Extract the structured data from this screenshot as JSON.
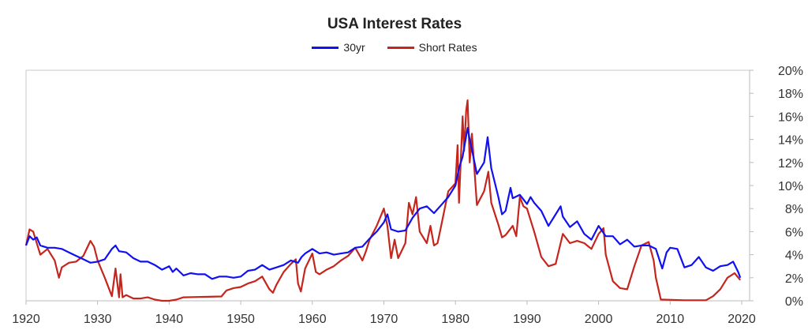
{
  "chart_data": {
    "type": "line",
    "title": "USA Interest Rates",
    "xlabel": "",
    "ylabel": "",
    "xlim": [
      1920,
      2020
    ],
    "ylim": [
      0,
      20
    ],
    "x_ticks": [
      "1920",
      "1930",
      "1940",
      "1950",
      "1960",
      "1970",
      "1980",
      "1990",
      "2000",
      "2010",
      "2020"
    ],
    "y_ticks": [
      "0%",
      "2%",
      "4%",
      "6%",
      "8%",
      "10%",
      "12%",
      "14%",
      "16%",
      "18%",
      "20%"
    ],
    "y_axis_side": "right",
    "grid": false,
    "legend_position": "top",
    "series": [
      {
        "name": "30yr",
        "color": "#1010f0",
        "points": [
          [
            1920,
            4.8
          ],
          [
            1920.5,
            5.6
          ],
          [
            1921,
            5.3
          ],
          [
            1921.5,
            5.5
          ],
          [
            1922,
            4.8
          ],
          [
            1923,
            4.6
          ],
          [
            1924,
            4.6
          ],
          [
            1925,
            4.5
          ],
          [
            1926,
            4.2
          ],
          [
            1927,
            3.9
          ],
          [
            1928,
            3.6
          ],
          [
            1929,
            3.3
          ],
          [
            1930,
            3.4
          ],
          [
            1931,
            3.6
          ],
          [
            1932,
            4.5
          ],
          [
            1932.5,
            4.8
          ],
          [
            1933,
            4.3
          ],
          [
            1934,
            4.2
          ],
          [
            1935,
            3.7
          ],
          [
            1936,
            3.4
          ],
          [
            1937,
            3.4
          ],
          [
            1938,
            3.1
          ],
          [
            1939,
            2.7
          ],
          [
            1940,
            3.0
          ],
          [
            1940.5,
            2.5
          ],
          [
            1941,
            2.8
          ],
          [
            1942,
            2.2
          ],
          [
            1943,
            2.4
          ],
          [
            1944,
            2.3
          ],
          [
            1945,
            2.3
          ],
          [
            1946,
            1.9
          ],
          [
            1947,
            2.1
          ],
          [
            1948,
            2.1
          ],
          [
            1949,
            2.0
          ],
          [
            1950,
            2.1
          ],
          [
            1951,
            2.6
          ],
          [
            1952,
            2.7
          ],
          [
            1953,
            3.1
          ],
          [
            1954,
            2.7
          ],
          [
            1955,
            2.9
          ],
          [
            1956,
            3.1
          ],
          [
            1957,
            3.5
          ],
          [
            1958,
            3.3
          ],
          [
            1958.5,
            3.8
          ],
          [
            1959,
            4.1
          ],
          [
            1960,
            4.5
          ],
          [
            1961,
            4.1
          ],
          [
            1962,
            4.2
          ],
          [
            1963,
            4.0
          ],
          [
            1964,
            4.1
          ],
          [
            1965,
            4.2
          ],
          [
            1966,
            4.6
          ],
          [
            1967,
            4.7
          ],
          [
            1968,
            5.4
          ],
          [
            1969,
            6.0
          ],
          [
            1970,
            6.8
          ],
          [
            1970.5,
            7.5
          ],
          [
            1971,
            6.2
          ],
          [
            1972,
            6.0
          ],
          [
            1973,
            6.1
          ],
          [
            1974,
            7.2
          ],
          [
            1975,
            8.0
          ],
          [
            1976,
            8.2
          ],
          [
            1977,
            7.6
          ],
          [
            1978,
            8.3
          ],
          [
            1979,
            9.0
          ],
          [
            1980,
            10.0
          ],
          [
            1980.5,
            11.5
          ],
          [
            1981,
            12.5
          ],
          [
            1981.7,
            15.0
          ],
          [
            1982,
            14.0
          ],
          [
            1982.5,
            12.5
          ],
          [
            1983,
            11.0
          ],
          [
            1984,
            12.0
          ],
          [
            1984.5,
            14.2
          ],
          [
            1985,
            11.5
          ],
          [
            1986,
            9.0
          ],
          [
            1986.5,
            7.5
          ],
          [
            1987,
            7.8
          ],
          [
            1987.7,
            9.8
          ],
          [
            1988,
            8.9
          ],
          [
            1989,
            9.2
          ],
          [
            1990,
            8.4
          ],
          [
            1990.5,
            9.0
          ],
          [
            1991,
            8.5
          ],
          [
            1992,
            7.8
          ],
          [
            1993,
            6.5
          ],
          [
            1994,
            7.5
          ],
          [
            1994.7,
            8.2
          ],
          [
            1995,
            7.3
          ],
          [
            1996,
            6.4
          ],
          [
            1997,
            6.9
          ],
          [
            1998,
            5.8
          ],
          [
            1999,
            5.3
          ],
          [
            2000,
            6.5
          ],
          [
            2001,
            5.6
          ],
          [
            2002,
            5.6
          ],
          [
            2003,
            4.9
          ],
          [
            2004,
            5.3
          ],
          [
            2005,
            4.7
          ],
          [
            2006,
            4.8
          ],
          [
            2007,
            4.8
          ],
          [
            2008,
            4.5
          ],
          [
            2008.9,
            2.8
          ],
          [
            2009.5,
            4.2
          ],
          [
            2010,
            4.6
          ],
          [
            2011,
            4.5
          ],
          [
            2012,
            2.9
          ],
          [
            2013,
            3.1
          ],
          [
            2014,
            3.8
          ],
          [
            2015,
            2.9
          ],
          [
            2016,
            2.6
          ],
          [
            2017,
            3.0
          ],
          [
            2018,
            3.1
          ],
          [
            2018.8,
            3.4
          ],
          [
            2019.5,
            2.5
          ],
          [
            2019.8,
            2.0
          ]
        ]
      },
      {
        "name": "Short Rates",
        "color": "#c4261d",
        "points": [
          [
            1920,
            4.8
          ],
          [
            1920.5,
            6.2
          ],
          [
            1921,
            6.0
          ],
          [
            1921.5,
            5.0
          ],
          [
            1922,
            4.0
          ],
          [
            1923,
            4.5
          ],
          [
            1924,
            3.5
          ],
          [
            1924.6,
            2.0
          ],
          [
            1925,
            2.9
          ],
          [
            1926,
            3.3
          ],
          [
            1927,
            3.4
          ],
          [
            1928,
            3.9
          ],
          [
            1929,
            5.2
          ],
          [
            1929.5,
            4.7
          ],
          [
            1930,
            3.5
          ],
          [
            1931,
            2.0
          ],
          [
            1932,
            0.4
          ],
          [
            1932.5,
            2.8
          ],
          [
            1933,
            0.3
          ],
          [
            1933.2,
            2.3
          ],
          [
            1933.5,
            0.3
          ],
          [
            1934,
            0.5
          ],
          [
            1935,
            0.2
          ],
          [
            1936,
            0.2
          ],
          [
            1937,
            0.3
          ],
          [
            1938,
            0.1
          ],
          [
            1939,
            0.0
          ],
          [
            1940,
            0.0
          ],
          [
            1941,
            0.1
          ],
          [
            1942,
            0.3
          ],
          [
            1947.3,
            0.375
          ],
          [
            1948,
            0.9
          ],
          [
            1949,
            1.1
          ],
          [
            1950,
            1.2
          ],
          [
            1951,
            1.5
          ],
          [
            1952,
            1.7
          ],
          [
            1953,
            2.1
          ],
          [
            1954,
            1.0
          ],
          [
            1954.5,
            0.7
          ],
          [
            1955,
            1.4
          ],
          [
            1956,
            2.5
          ],
          [
            1957,
            3.2
          ],
          [
            1957.7,
            3.6
          ],
          [
            1958,
            1.5
          ],
          [
            1958.4,
            0.8
          ],
          [
            1959,
            2.8
          ],
          [
            1960,
            4.1
          ],
          [
            1960.5,
            2.5
          ],
          [
            1961,
            2.3
          ],
          [
            1962,
            2.7
          ],
          [
            1963,
            3.0
          ],
          [
            1964,
            3.5
          ],
          [
            1965,
            3.9
          ],
          [
            1966,
            4.6
          ],
          [
            1967,
            3.5
          ],
          [
            1967.5,
            4.3
          ],
          [
            1968,
            5.3
          ],
          [
            1969,
            6.5
          ],
          [
            1970,
            8.0
          ],
          [
            1970.5,
            6.5
          ],
          [
            1971,
            3.7
          ],
          [
            1971.5,
            5.3
          ],
          [
            1972,
            3.7
          ],
          [
            1973,
            5.0
          ],
          [
            1973.5,
            8.5
          ],
          [
            1974,
            7.5
          ],
          [
            1974.5,
            9.0
          ],
          [
            1975,
            6.0
          ],
          [
            1976,
            5.0
          ],
          [
            1976.5,
            6.5
          ],
          [
            1977,
            4.8
          ],
          [
            1977.5,
            5.0
          ],
          [
            1978,
            6.5
          ],
          [
            1979,
            9.5
          ],
          [
            1980,
            10.2
          ],
          [
            1980.3,
            13.5
          ],
          [
            1980.5,
            8.5
          ],
          [
            1981,
            16.0
          ],
          [
            1981.2,
            13.0
          ],
          [
            1981.5,
            16.5
          ],
          [
            1981.7,
            17.4
          ],
          [
            1982,
            12.0
          ],
          [
            1982.3,
            14.5
          ],
          [
            1983,
            8.3
          ],
          [
            1984,
            9.5
          ],
          [
            1984.6,
            11.2
          ],
          [
            1985,
            8.5
          ],
          [
            1986,
            6.6
          ],
          [
            1986.5,
            5.5
          ],
          [
            1987,
            5.7
          ],
          [
            1988,
            6.5
          ],
          [
            1988.5,
            5.6
          ],
          [
            1989,
            9.0
          ],
          [
            1989.5,
            8.2
          ],
          [
            1990,
            8.0
          ],
          [
            1991,
            6.0
          ],
          [
            1992,
            3.8
          ],
          [
            1993,
            3.0
          ],
          [
            1994,
            3.2
          ],
          [
            1995,
            5.8
          ],
          [
            1996,
            5.0
          ],
          [
            1997,
            5.2
          ],
          [
            1998,
            5.0
          ],
          [
            1999,
            4.5
          ],
          [
            2000,
            5.8
          ],
          [
            2000.7,
            6.3
          ],
          [
            2001,
            4.0
          ],
          [
            2002,
            1.7
          ],
          [
            2003,
            1.1
          ],
          [
            2004,
            1.0
          ],
          [
            2005,
            3.0
          ],
          [
            2006,
            4.8
          ],
          [
            2007,
            5.1
          ],
          [
            2007.7,
            3.5
          ],
          [
            2008,
            2.0
          ],
          [
            2008.7,
            0.1
          ],
          [
            2009,
            0.1
          ],
          [
            2012,
            0.05
          ],
          [
            2015,
            0.05
          ],
          [
            2016,
            0.4
          ],
          [
            2017,
            1.0
          ],
          [
            2018,
            2.0
          ],
          [
            2019,
            2.4
          ],
          [
            2019.8,
            1.8
          ]
        ]
      }
    ]
  }
}
